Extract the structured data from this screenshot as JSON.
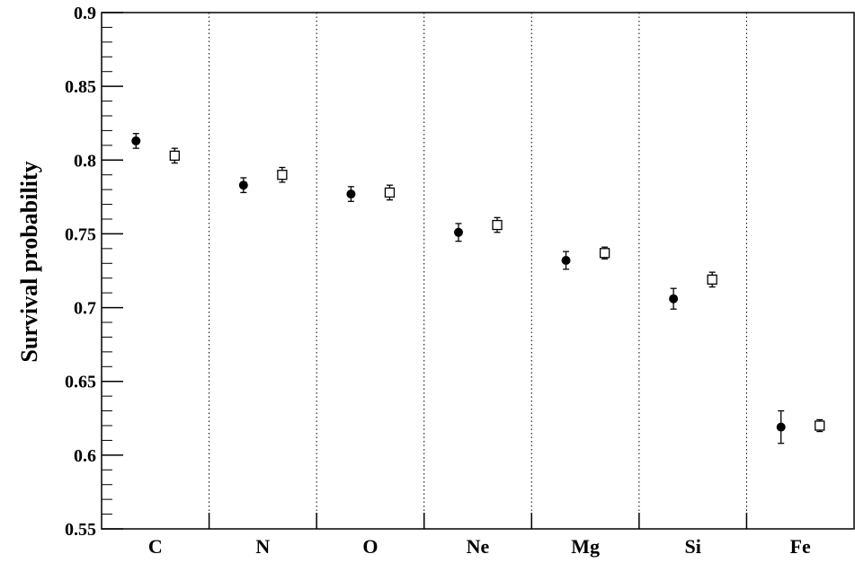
{
  "chart_data": {
    "type": "scatter",
    "title": "",
    "xlabel": "",
    "ylabel": "Survival probability",
    "ylim": [
      0.55,
      0.9
    ],
    "y_ticks": [
      "0.55",
      "0.6",
      "0.65",
      "0.7",
      "0.75",
      "0.8",
      "0.85",
      "0.9"
    ],
    "categories": [
      "C",
      "N",
      "O",
      "Ne",
      "Mg",
      "Si",
      "Fe"
    ],
    "category_separators": "dotted",
    "series": [
      {
        "marker": "filled-circle",
        "values": [
          0.813,
          0.783,
          0.777,
          0.751,
          0.732,
          0.706,
          0.619
        ],
        "errors": [
          0.005,
          0.005,
          0.005,
          0.006,
          0.006,
          0.007,
          0.011
        ]
      },
      {
        "marker": "open-square",
        "values": [
          0.803,
          0.79,
          0.778,
          0.756,
          0.737,
          0.719,
          0.62
        ],
        "errors": [
          0.005,
          0.005,
          0.005,
          0.005,
          0.004,
          0.005,
          0.004
        ]
      }
    ]
  }
}
